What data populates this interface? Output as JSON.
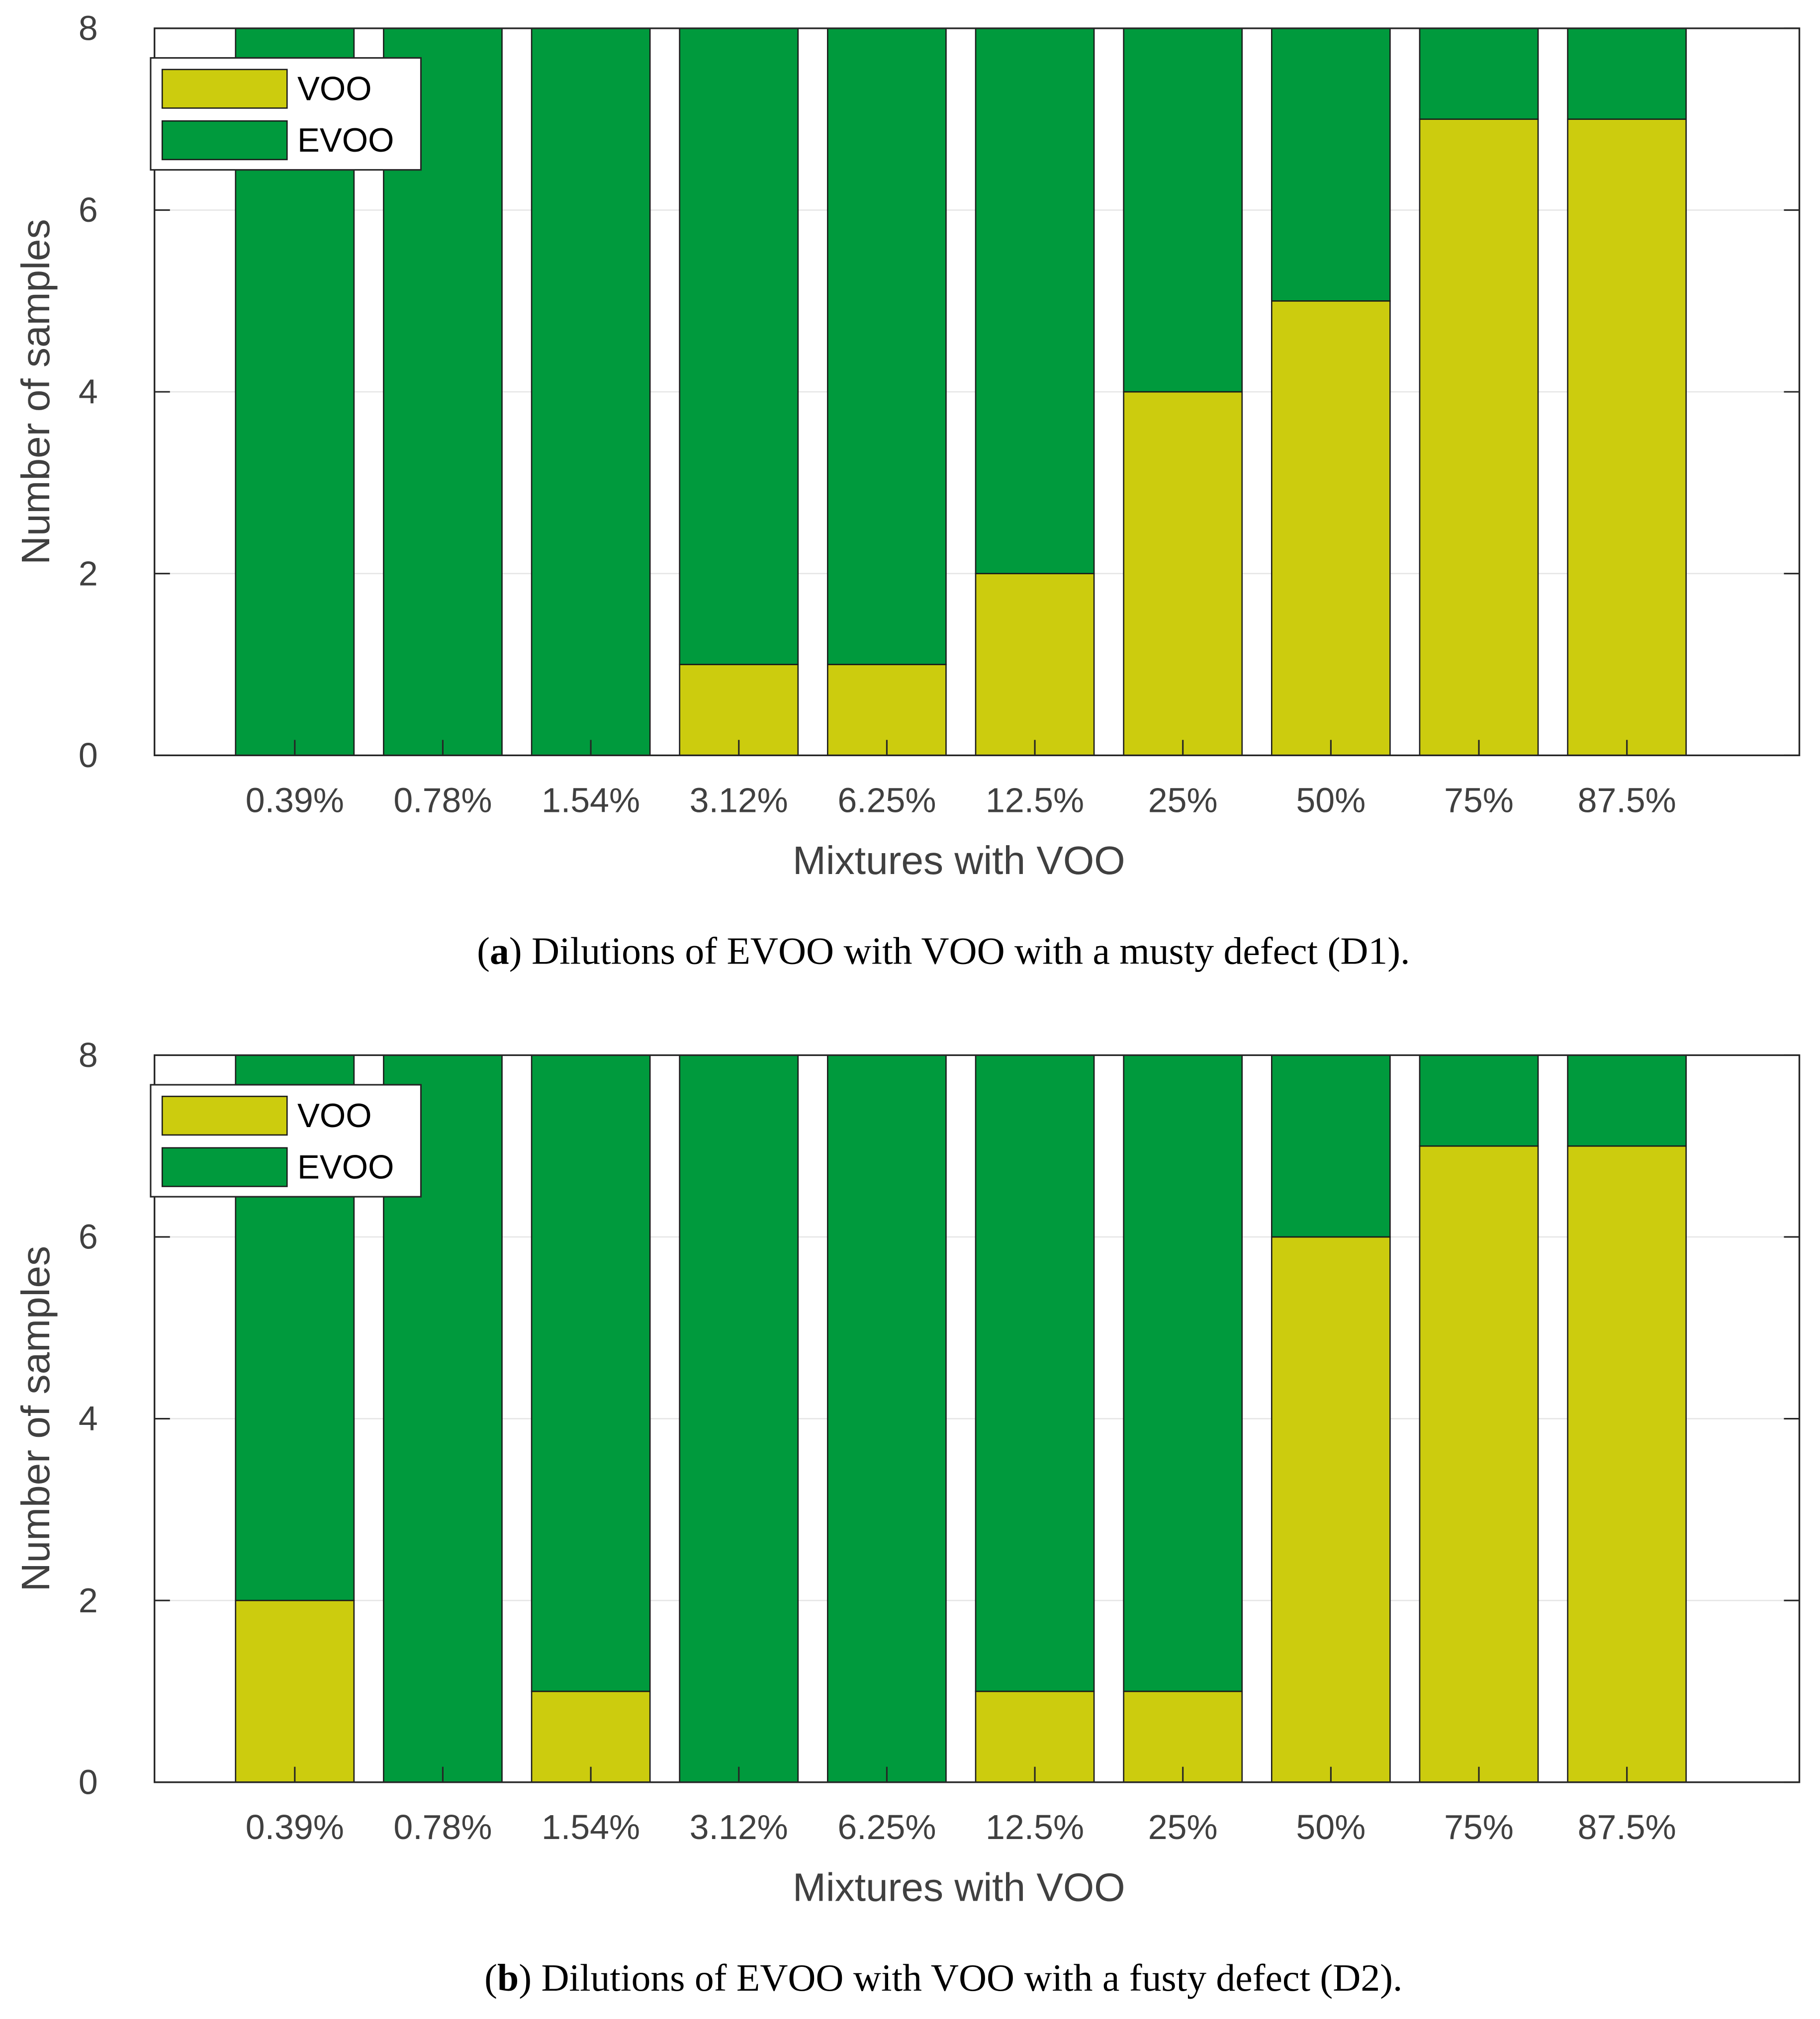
{
  "chart_data": [
    {
      "type": "bar",
      "stacked": true,
      "caption": {
        "open": "(",
        "label": "a",
        "text": ") Dilutions of EVOO with VOO with a musty defect (D1)."
      },
      "x_label": "Mixtures with VOO",
      "y_label": "Number of samples",
      "categories": [
        "0.39%",
        "0.78%",
        "1.54%",
        "3.12%",
        "6.25%",
        "12.5%",
        "25%",
        "50%",
        "75%",
        "87.5%"
      ],
      "series": [
        {
          "name": "VOO",
          "color": "#cccc0e",
          "values": [
            0,
            0,
            0,
            1,
            1,
            2,
            4,
            5,
            7,
            7
          ]
        },
        {
          "name": "EVOO",
          "color": "#009a3d",
          "values": [
            8,
            8,
            8,
            7,
            7,
            6,
            4,
            3,
            1,
            1
          ]
        }
      ],
      "ylim": [
        0,
        8
      ],
      "yticks": [
        0,
        2,
        4,
        6,
        8
      ],
      "grid": true,
      "legend": "upper-left"
    },
    {
      "type": "bar",
      "stacked": true,
      "caption": {
        "open": "(",
        "label": "b",
        "text": ") Dilutions of EVOO with VOO with a fusty defect (D2)."
      },
      "x_label": "Mixtures with VOO",
      "y_label": "Number of samples",
      "categories": [
        "0.39%",
        "0.78%",
        "1.54%",
        "3.12%",
        "6.25%",
        "12.5%",
        "25%",
        "50%",
        "75%",
        "87.5%"
      ],
      "series": [
        {
          "name": "VOO",
          "color": "#cccc0e",
          "values": [
            2,
            0,
            1,
            0,
            0,
            1,
            1,
            6,
            7,
            7
          ]
        },
        {
          "name": "EVOO",
          "color": "#009a3d",
          "values": [
            6,
            8,
            7,
            8,
            8,
            7,
            7,
            2,
            1,
            1
          ]
        }
      ],
      "ylim": [
        0,
        8
      ],
      "yticks": [
        0,
        2,
        4,
        6,
        8
      ],
      "grid": true,
      "legend": "upper-left"
    }
  ]
}
